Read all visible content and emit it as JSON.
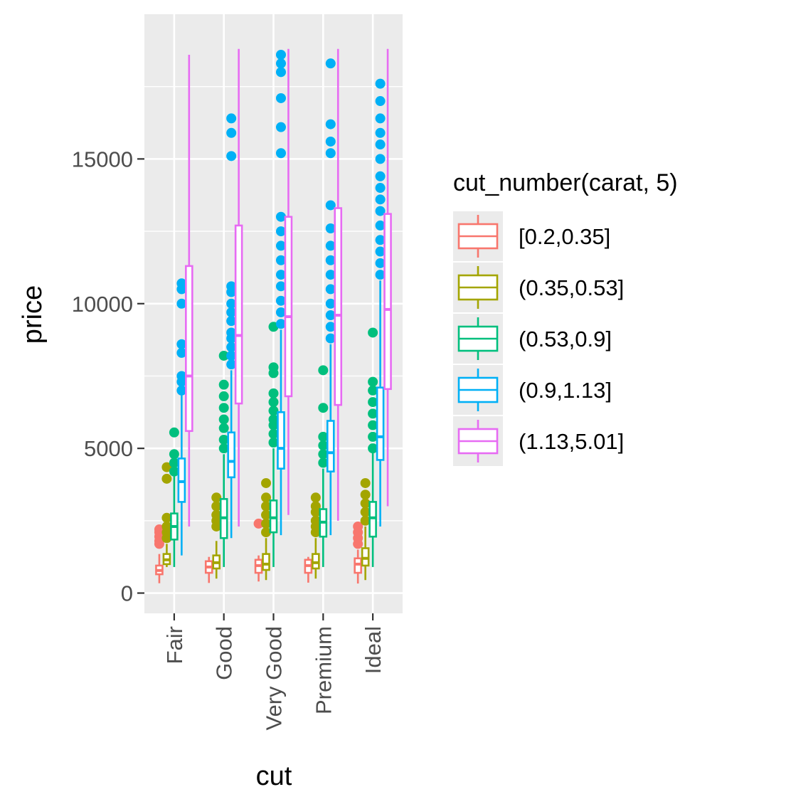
{
  "chart_data": {
    "type": "boxplot",
    "xlabel": "cut",
    "ylabel": "price",
    "categories": [
      "Fair",
      "Good",
      "Very Good",
      "Premium",
      "Ideal"
    ],
    "ylim": [
      -700,
      20000
    ],
    "yticks": [
      0,
      5000,
      10000,
      15000
    ],
    "ytick_labels": [
      "0",
      "5000",
      "10000",
      "15000"
    ],
    "grid": true,
    "legend_title": "cut_number(carat, 5)",
    "legend_position": "right",
    "series": [
      {
        "name": "[0.2,0.35]",
        "color": "#F8766D",
        "boxes": [
          {
            "whisker_low": 340,
            "q1": 650,
            "median": 780,
            "q3": 950,
            "whisker_high": 1350,
            "outliers": [
              1700,
              1800,
              1950,
              2100,
              2200
            ]
          },
          {
            "whisker_low": 350,
            "q1": 700,
            "median": 900,
            "q3": 1100,
            "whisker_high": 1250,
            "outliers": []
          },
          {
            "whisker_low": 400,
            "q1": 700,
            "median": 950,
            "q3": 1150,
            "whisker_high": 1300,
            "outliers": [
              2400
            ]
          },
          {
            "whisker_low": 360,
            "q1": 700,
            "median": 950,
            "q3": 1150,
            "whisker_high": 1250,
            "outliers": []
          },
          {
            "whisker_low": 330,
            "q1": 700,
            "median": 1000,
            "q3": 1200,
            "whisker_high": 1500,
            "outliers": [
              1700,
              1900,
              2100,
              2300
            ]
          }
        ]
      },
      {
        "name": "(0.35,0.53]",
        "color": "#A3A500",
        "boxes": [
          {
            "whisker_low": 900,
            "q1": 1000,
            "median": 1150,
            "q3": 1350,
            "whisker_high": 1700,
            "outliers": [
              1900,
              2100,
              2300,
              2600,
              3950,
              4350
            ]
          },
          {
            "whisker_low": 500,
            "q1": 850,
            "median": 1050,
            "q3": 1300,
            "whisker_high": 1800,
            "outliers": [
              2300,
              2500,
              2700,
              3000,
              3300
            ]
          },
          {
            "whisker_low": 450,
            "q1": 800,
            "median": 1000,
            "q3": 1350,
            "whisker_high": 1900,
            "outliers": [
              2100,
              2400,
              2700,
              3000,
              3300,
              3800
            ]
          },
          {
            "whisker_low": 500,
            "q1": 850,
            "median": 1050,
            "q3": 1350,
            "whisker_high": 1900,
            "outliers": [
              2100,
              2300,
              2500,
              2800,
              3000,
              3300
            ]
          },
          {
            "whisker_low": 450,
            "q1": 950,
            "median": 1200,
            "q3": 1550,
            "whisker_high": 2300,
            "outliers": [
              2500,
              2800,
              3100,
              3400,
              3800
            ]
          }
        ]
      },
      {
        "name": "(0.53,0.9]",
        "color": "#00BF7D",
        "boxes": [
          {
            "whisker_low": 900,
            "q1": 1850,
            "median": 2300,
            "q3": 2750,
            "whisker_high": 4100,
            "outliers": [
              4200,
              4500,
              4800,
              5550
            ]
          },
          {
            "whisker_low": 900,
            "q1": 1900,
            "median": 2600,
            "q3": 3250,
            "whisker_high": 4800,
            "outliers": [
              5000,
              5300,
              5700,
              6000,
              6400,
              6800,
              7200,
              8200
            ]
          },
          {
            "whisker_low": 900,
            "q1": 2100,
            "median": 2600,
            "q3": 3200,
            "whisker_high": 5000,
            "outliers": [
              5200,
              5500,
              5800,
              6000,
              6300,
              6600,
              6900,
              7600,
              7800,
              9200
            ]
          },
          {
            "whisker_low": 900,
            "q1": 1950,
            "median": 2450,
            "q3": 2900,
            "whisker_high": 4300,
            "outliers": [
              4500,
              4800,
              5100,
              5400,
              6400,
              7700
            ]
          },
          {
            "whisker_low": 900,
            "q1": 1950,
            "median": 2600,
            "q3": 3150,
            "whisker_high": 4900,
            "outliers": [
              5000,
              5400,
              5800,
              6200,
              6600,
              7000,
              7300,
              9000
            ]
          }
        ]
      },
      {
        "name": "(0.9,1.13]",
        "color": "#00B0F6",
        "boxes": [
          {
            "whisker_low": 1300,
            "q1": 3150,
            "median": 3850,
            "q3": 4650,
            "whisker_high": 6900,
            "outliers": [
              7000,
              7300,
              7500,
              8300,
              8600,
              10000,
              10500,
              10700
            ]
          },
          {
            "whisker_low": 1900,
            "q1": 4000,
            "median": 4550,
            "q3": 5550,
            "whisker_high": 7700,
            "outliers": [
              7900,
              8200,
              8500,
              8800,
              9000,
              9400,
              9700,
              10000,
              10400,
              10600,
              15100,
              15900,
              16400
            ]
          },
          {
            "whisker_low": 2000,
            "q1": 4300,
            "median": 5000,
            "q3": 6250,
            "whisker_high": 9100,
            "outliers": [
              9300,
              9700,
              10100,
              10600,
              11000,
              11500,
              12000,
              12500,
              13000,
              15200,
              16100,
              17100,
              18000,
              18300,
              18600
            ]
          },
          {
            "whisker_low": 2000,
            "q1": 4200,
            "median": 4850,
            "q3": 5950,
            "whisker_high": 8600,
            "outliers": [
              8800,
              9200,
              9600,
              10000,
              10500,
              11000,
              11500,
              12000,
              12600,
              13400,
              15200,
              15600,
              16200,
              18300
            ]
          },
          {
            "whisker_low": 2300,
            "q1": 4600,
            "median": 5400,
            "q3": 7100,
            "whisker_high": 10800,
            "outliers": [
              11000,
              11400,
              11800,
              12200,
              12700,
              13200,
              13600,
              14000,
              14400,
              15000,
              15500,
              15900,
              16400,
              17000,
              17600
            ]
          }
        ]
      },
      {
        "name": "(1.13,5.01]",
        "color": "#E76BF3",
        "boxes": [
          {
            "whisker_low": 2300,
            "q1": 5600,
            "median": 7500,
            "q3": 11300,
            "whisker_high": 18600,
            "outliers": []
          },
          {
            "whisker_low": 2300,
            "q1": 6550,
            "median": 8900,
            "q3": 12700,
            "whisker_high": 18800,
            "outliers": []
          },
          {
            "whisker_low": 2700,
            "q1": 6800,
            "median": 9550,
            "q3": 13000,
            "whisker_high": 18800,
            "outliers": []
          },
          {
            "whisker_low": 2500,
            "q1": 6500,
            "median": 9600,
            "q3": 13300,
            "whisker_high": 18800,
            "outliers": []
          },
          {
            "whisker_low": 3000,
            "q1": 7050,
            "median": 9800,
            "q3": 13100,
            "whisker_high": 18800,
            "outliers": []
          }
        ]
      }
    ]
  }
}
